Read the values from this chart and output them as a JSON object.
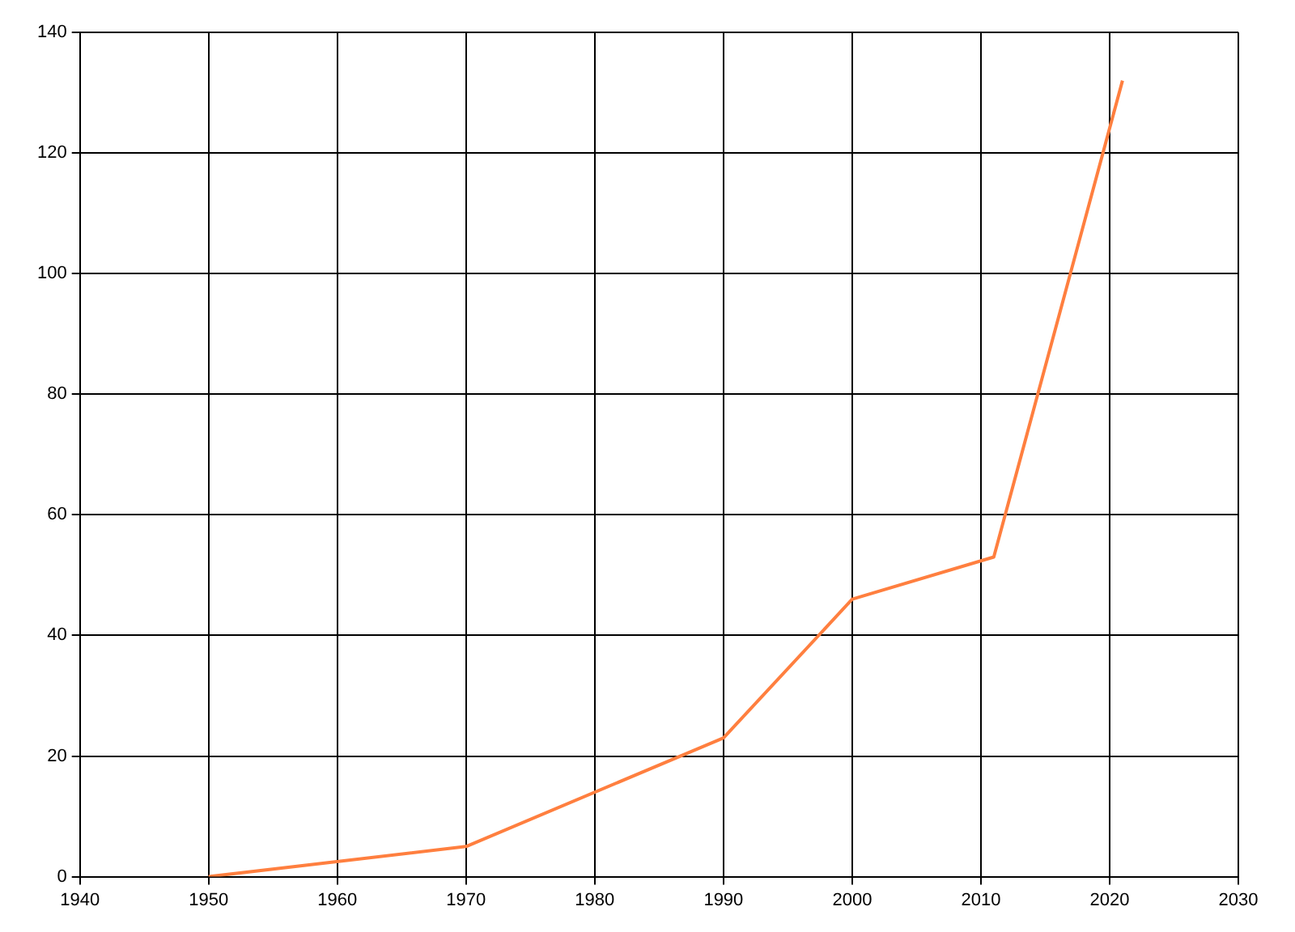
{
  "chart_data": {
    "type": "line",
    "x": [
      1950,
      1970,
      1990,
      2000,
      2011,
      2021
    ],
    "series": [
      {
        "color": "#ff7f3f",
        "values": [
          0,
          5,
          23,
          46,
          53,
          132
        ]
      }
    ],
    "xlim": [
      1940,
      2030
    ],
    "xticks": [
      1940,
      1950,
      1960,
      1970,
      1980,
      1990,
      2000,
      2010,
      2020,
      2030
    ],
    "ylim": [
      0,
      140
    ],
    "yticks": [
      0,
      20,
      40,
      60,
      80,
      100,
      120,
      140
    ],
    "grid": true,
    "legend": false,
    "marker": "none",
    "line_style": "solid"
  }
}
